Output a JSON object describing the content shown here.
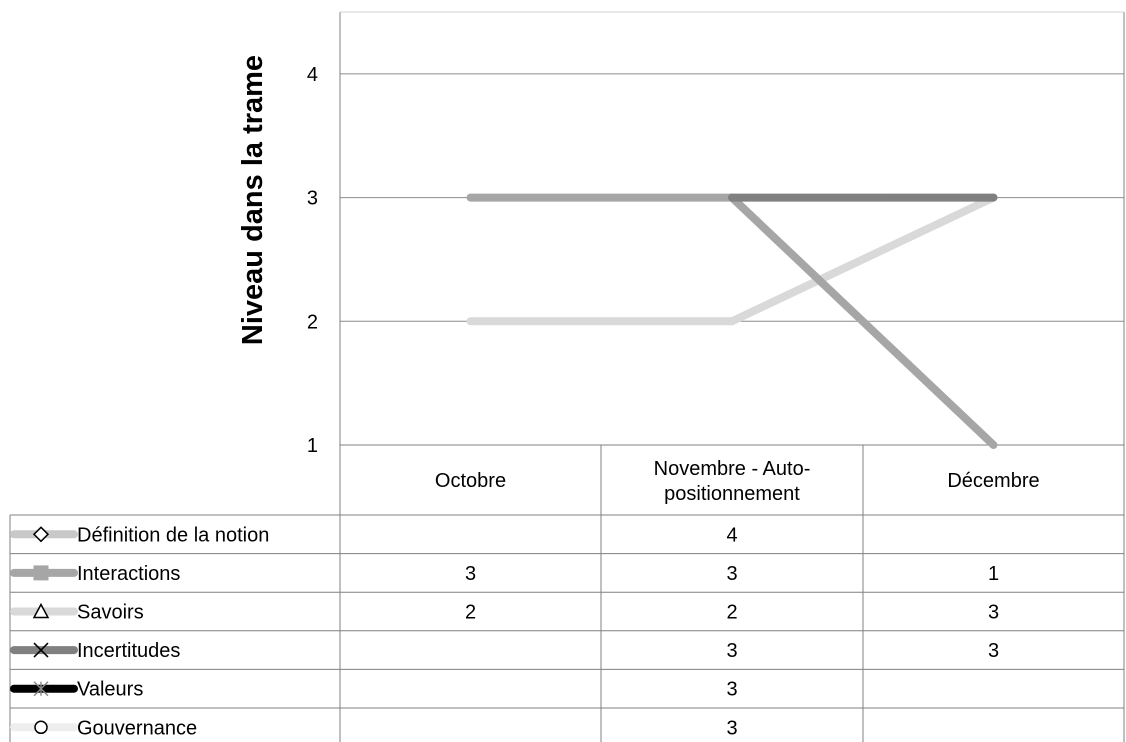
{
  "chart_data": {
    "type": "line",
    "ylabel": "Niveau dans la trame",
    "xlabel": "",
    "ylim": [
      1,
      4.5
    ],
    "yticks": [
      1,
      2,
      3,
      4
    ],
    "grid": true,
    "legend": "data-table-left",
    "categories": [
      "Octobre",
      "Novembre - Auto-positionnement",
      "Décembre"
    ],
    "category_lines": [
      [
        "Octobre"
      ],
      [
        "Novembre - Auto-",
        "positionnement"
      ],
      [
        "Décembre"
      ]
    ],
    "series": [
      {
        "name": "Définition de la notion",
        "values": [
          null,
          4,
          null
        ],
        "color": "#c8c8c8",
        "marker": "diamond"
      },
      {
        "name": "Interactions",
        "values": [
          3,
          3,
          1
        ],
        "color": "#a6a6a6",
        "marker": "square"
      },
      {
        "name": "Savoirs",
        "values": [
          2,
          2,
          3
        ],
        "color": "#d9d9d9",
        "marker": "triangle"
      },
      {
        "name": "Incertitudes",
        "values": [
          null,
          3,
          3
        ],
        "color": "#808080",
        "marker": "x"
      },
      {
        "name": "Valeurs",
        "values": [
          null,
          3,
          null
        ],
        "color": "#000000",
        "marker": "star"
      },
      {
        "name": "Gouvernance",
        "values": [
          null,
          3,
          null
        ],
        "color": "#eeeeee",
        "marker": "circle"
      }
    ]
  }
}
